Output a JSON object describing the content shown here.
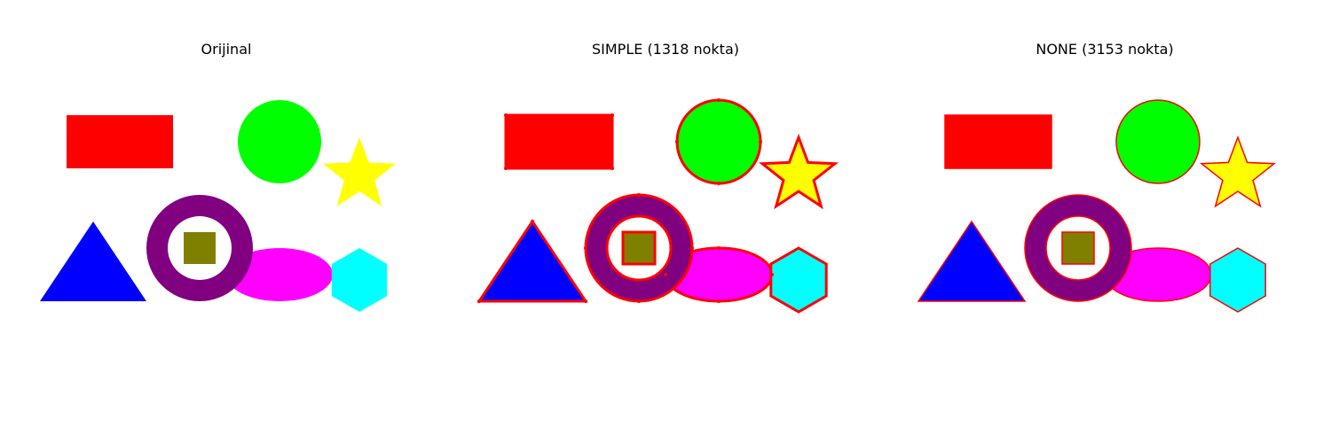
{
  "figure": {
    "panels": [
      {
        "title": "Orijinal",
        "contour_mode": "none-drawn"
      },
      {
        "title": "SIMPLE (1318 nokta)",
        "contour_mode": "simple"
      },
      {
        "title": "NONE (3153 nokta)",
        "contour_mode": "none"
      }
    ]
  },
  "colors": {
    "rectangle": "#ff0000",
    "circle": "#00ff00",
    "star": "#ffff00",
    "triangle": "#0000ff",
    "ring": "#800080",
    "ring_hole": "#ffffff",
    "inner_square": "#808000",
    "ellipse": "#ff00ff",
    "hexagon": "#00ffff",
    "contour": "#ff0000"
  }
}
